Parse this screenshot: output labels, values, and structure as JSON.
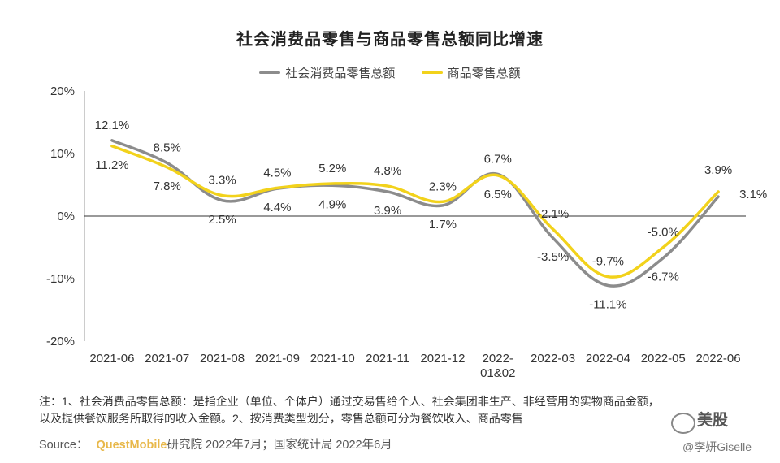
{
  "chart_data": {
    "type": "line",
    "title": "社会消费品零售与商品零售总额同比增速",
    "categories": [
      "2021-06",
      "2021-07",
      "2021-08",
      "2021-09",
      "2021-10",
      "2021-11",
      "2021-12",
      "2022-01&02",
      "2022-03",
      "2022-04",
      "2022-05",
      "2022-06"
    ],
    "category_lines": [
      [
        "2021-06"
      ],
      [
        "2021-07"
      ],
      [
        "2021-08"
      ],
      [
        "2021-09"
      ],
      [
        "2021-10"
      ],
      [
        "2021-11"
      ],
      [
        "2021-12"
      ],
      [
        "2022-",
        "01&02"
      ],
      [
        "2022-03"
      ],
      [
        "2022-04"
      ],
      [
        "2022-05"
      ],
      [
        "2022-06"
      ]
    ],
    "y_ticks": [
      "20%",
      "10%",
      "0%",
      "-10%",
      "-20%"
    ],
    "ylim": [
      -20,
      20
    ],
    "series": [
      {
        "name": "社会消费品零售总额",
        "color": "#8c8c8c",
        "values": [
          12.1,
          8.5,
          2.5,
          4.4,
          4.9,
          3.9,
          1.7,
          6.7,
          -3.5,
          -11.1,
          -6.7,
          3.1
        ],
        "labels": [
          "12.1%",
          "8.5%",
          "2.5%",
          "4.4%",
          "4.9%",
          "3.9%",
          "1.7%",
          "6.7%",
          "-3.5%",
          "-11.1%",
          "-6.7%",
          "3.1%"
        ]
      },
      {
        "name": "商品零售总额",
        "color": "#f2d21b",
        "values": [
          11.2,
          7.8,
          3.3,
          4.5,
          5.2,
          4.8,
          2.3,
          6.5,
          -2.1,
          -9.7,
          -5.0,
          3.9
        ],
        "labels": [
          "11.2%",
          "7.8%",
          "3.3%",
          "4.5%",
          "5.2%",
          "4.8%",
          "2.3%",
          "6.5%",
          "-2.1%",
          "-9.7%",
          "-5.0%",
          "3.9%"
        ]
      }
    ],
    "legend_position": "top-center",
    "grid": false
  },
  "note": {
    "line1": "注：1、社会消费品零售总额：是指企业（单位、个体户）通过交易售给个人、社会集团非生产、非经营用的实物商品金额，",
    "line2": "以及提供餐饮服务所取得的收入金额。2、按消费类型划分，零售总额可分为餐饮收入、商品零售"
  },
  "source": {
    "label": "Source：",
    "brand": "QuestMobile",
    "text": "研究院 2022年7月；国家统计局 2022年6月"
  },
  "watermark": {
    "name": "美股",
    "author": "@李妍Giselle"
  }
}
